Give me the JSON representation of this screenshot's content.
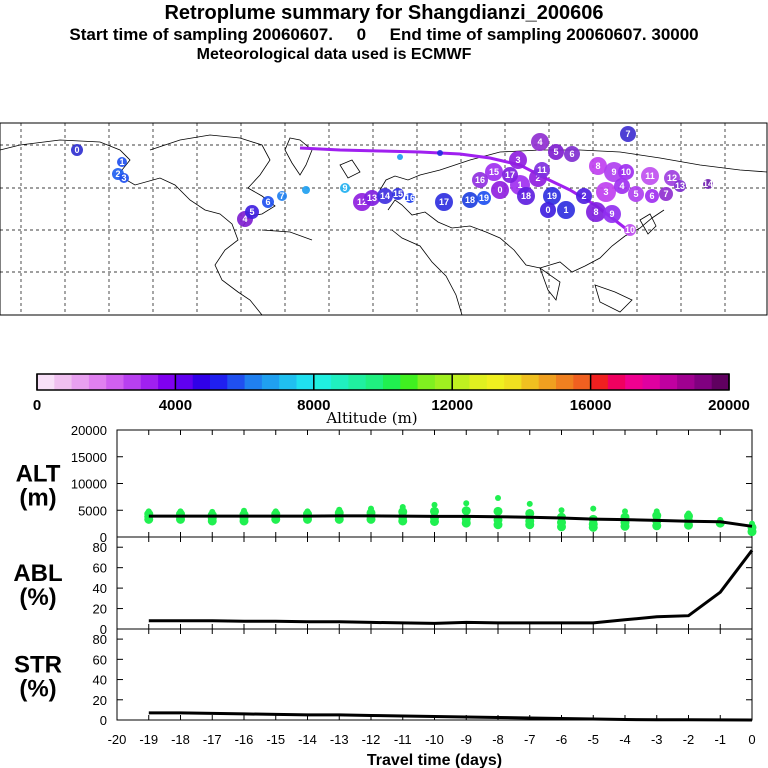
{
  "header": {
    "title": "Retroplume summary for Shangdianzi_200606",
    "sampling": "Start time of sampling 20060607.     0     End time of sampling 20060607. 30000",
    "meteo": "Meteorological data used is ECMWF"
  },
  "colorbar": {
    "title": "Altitude (m)",
    "tick_labels": [
      "0",
      "4000",
      "8000",
      "12000",
      "16000",
      "20000"
    ],
    "colors": [
      "#f8e0f8",
      "#f0c0f0",
      "#e8a0f0",
      "#e080f0",
      "#d060f0",
      "#b840f0",
      "#a020f0",
      "#8000f0",
      "#6000f0",
      "#3000e8",
      "#2020f0",
      "#2050f0",
      "#2080f0",
      "#20a0f0",
      "#20c0f0",
      "#20e0f0",
      "#20f0e0",
      "#20f0c0",
      "#20f0a0",
      "#20f080",
      "#20f050",
      "#40f020",
      "#80f020",
      "#a0f020",
      "#c0f020",
      "#e0f020",
      "#f0f020",
      "#f0e020",
      "#f0c020",
      "#f0a020",
      "#f08020",
      "#f06020",
      "#f02020",
      "#f00060",
      "#f00090",
      "#e000a0",
      "#c000a0",
      "#a00090",
      "#800080",
      "#600060"
    ]
  },
  "map": {
    "name": "Retroplume map",
    "cluster_labels": [
      "0",
      "1",
      "2",
      "3",
      "4",
      "5",
      "6",
      "7",
      "8",
      "9",
      "10",
      "11",
      "12",
      "13",
      "14",
      "15",
      "16",
      "17",
      "18",
      "19"
    ]
  },
  "chart_data": [
    {
      "type": "line",
      "panel": "ALT",
      "ylabel_line1": "ALT",
      "ylabel_line2": "(m)",
      "x": [
        -20,
        -19,
        -18,
        -17,
        -16,
        -15,
        -14,
        -13,
        -12,
        -11,
        -10,
        -9,
        -8,
        -7,
        -6,
        -5,
        -4,
        -3,
        -2,
        -1,
        0
      ],
      "xlim": [
        -20,
        0
      ],
      "ylim": [
        0,
        20000
      ],
      "yticks": [
        0,
        5000,
        10000,
        15000,
        20000
      ],
      "series": [
        {
          "name": "mean altitude",
          "x": [
            -19,
            -18,
            -17,
            -16,
            -15,
            -14,
            -13,
            -12,
            -11,
            -10,
            -9,
            -8,
            -7,
            -6,
            -5,
            -4,
            -3,
            -2,
            -1,
            0
          ],
          "values": [
            3900,
            3900,
            3900,
            3900,
            3900,
            3900,
            3950,
            3950,
            3900,
            3850,
            3850,
            3800,
            3700,
            3550,
            3350,
            3250,
            3100,
            2950,
            2850,
            2000
          ],
          "color": "#000000"
        }
      ],
      "scatter": [
        {
          "x": -19,
          "y": [
            3300,
            3800,
            4300,
            4800
          ]
        },
        {
          "x": -18,
          "y": [
            3300,
            3800,
            4300,
            4800
          ]
        },
        {
          "x": -17,
          "y": [
            3000,
            3500,
            4100,
            4700
          ]
        },
        {
          "x": -16,
          "y": [
            3000,
            3600,
            4200,
            4900
          ]
        },
        {
          "x": -15,
          "y": [
            3300,
            3800,
            4300,
            4800
          ]
        },
        {
          "x": -14,
          "y": [
            3300,
            3800,
            4300,
            4800
          ]
        },
        {
          "x": -13,
          "y": [
            3300,
            3900,
            4500,
            5100
          ]
        },
        {
          "x": -12,
          "y": [
            3300,
            3900,
            4500,
            5300
          ]
        },
        {
          "x": -11,
          "y": [
            3000,
            3800,
            4700,
            5600
          ]
        },
        {
          "x": -10,
          "y": [
            2900,
            3600,
            4800,
            6000
          ]
        },
        {
          "x": -9,
          "y": [
            2600,
            3400,
            4900,
            6300
          ]
        },
        {
          "x": -8,
          "y": [
            2300,
            3200,
            4800,
            7300
          ]
        },
        {
          "x": -7,
          "y": [
            2300,
            3000,
            4400,
            6200
          ]
        },
        {
          "x": -6,
          "y": [
            1900,
            2700,
            3700,
            5000
          ]
        },
        {
          "x": -5,
          "y": [
            1800,
            2400,
            3300,
            5300
          ]
        },
        {
          "x": -4,
          "y": [
            2000,
            2700,
            3700,
            4800
          ]
        },
        {
          "x": -3,
          "y": [
            2100,
            3000,
            4000,
            4800
          ]
        },
        {
          "x": -2,
          "y": [
            2200,
            3000,
            3900,
            4400
          ]
        },
        {
          "x": -1,
          "y": [
            2600,
            3200
          ]
        },
        {
          "x": 0,
          "y": [
            1000,
            1800,
            2500
          ]
        }
      ],
      "scatter_color": "#20f050"
    },
    {
      "type": "line",
      "panel": "ABL",
      "ylabel_line1": "ABL",
      "ylabel_line2": "(%)",
      "xlim": [
        -20,
        0
      ],
      "ylim": [
        0,
        90
      ],
      "yticks": [
        0,
        20,
        40,
        60,
        80
      ],
      "series": [
        {
          "name": "ABL fraction",
          "x": [
            -19,
            -18,
            -17,
            -16,
            -15,
            -14,
            -13,
            -12,
            -11,
            -10,
            -9,
            -8,
            -7,
            -6,
            -5,
            -4,
            -3,
            -2,
            -1,
            0
          ],
          "values": [
            8,
            8,
            8,
            7.5,
            7.5,
            7,
            7,
            6.5,
            6,
            5.5,
            6.5,
            6,
            6,
            6,
            6,
            9,
            12,
            13,
            36,
            77
          ],
          "color": "#000000"
        }
      ]
    },
    {
      "type": "line",
      "panel": "STR",
      "ylabel_line1": "STR",
      "ylabel_line2": "(%)",
      "xlim": [
        -20,
        0
      ],
      "ylim": [
        0,
        90
      ],
      "yticks": [
        0,
        20,
        40,
        60,
        80
      ],
      "xlabel": "Travel time (days)",
      "xtick_labels": [
        "-20",
        "-19",
        "-18",
        "-17",
        "-16",
        "-15",
        "-14",
        "-13",
        "-12",
        "-11",
        "-10",
        "-9",
        "-8",
        "-7",
        "-6",
        "-5",
        "-4",
        "-3",
        "-2",
        "-1",
        "0"
      ],
      "series": [
        {
          "name": "stratosphere fraction",
          "x": [
            -19,
            -18,
            -17,
            -16,
            -15,
            -14,
            -13,
            -12,
            -11,
            -10,
            -9,
            -8,
            -7,
            -6,
            -5,
            -4,
            -3,
            -2,
            -1,
            0
          ],
          "values": [
            7,
            7,
            6.5,
            6,
            5.5,
            5,
            5,
            4.5,
            4,
            3.5,
            3,
            2.5,
            2,
            1.5,
            1,
            0.5,
            0.3,
            0.2,
            0.1,
            0
          ],
          "color": "#000000"
        }
      ]
    }
  ]
}
